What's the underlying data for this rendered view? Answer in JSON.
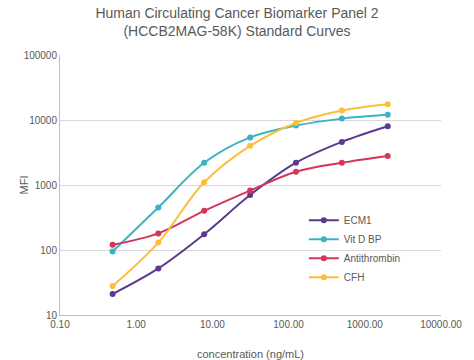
{
  "chart_data": {
    "type": "line",
    "title": "Human Circulating Cancer Biomarker Panel 2\n(HCCB2MAG-58K) Standard Curves",
    "x_label": "concentration (ng/mL)",
    "y_label": "MFI",
    "log": true,
    "grid": "y",
    "legend": "lower right",
    "marker": "circle",
    "line_style": "smooth",
    "x": [
      0.49,
      1.95,
      7.8,
      31.25,
      125,
      500,
      2000
    ],
    "series": [
      {
        "name": "ECM1",
        "color": "#5b3a8e",
        "values": [
          21,
          52,
          175,
          700,
          2200,
          4600,
          8000
        ]
      },
      {
        "name": "Vit D BP",
        "color": "#3bb3c3",
        "values": [
          95,
          450,
          2200,
          5400,
          8200,
          10500,
          12000
        ]
      },
      {
        "name": "Antithrombin",
        "color": "#d4365a",
        "values": [
          120,
          180,
          400,
          820,
          1600,
          2200,
          2800
        ]
      },
      {
        "name": "CFH",
        "color": "#fbbf3c",
        "values": [
          28,
          130,
          1100,
          4000,
          9000,
          14000,
          17500
        ]
      }
    ],
    "xlim": [
      0.1,
      10000
    ],
    "xticks": [
      {
        "value": 0.1,
        "label": "0.10"
      },
      {
        "value": 1,
        "label": "1.00"
      },
      {
        "value": 10,
        "label": "10.00"
      },
      {
        "value": 100,
        "label": "100.00"
      },
      {
        "value": 1000,
        "label": "1000.00"
      },
      {
        "value": 10000,
        "label": "10000.00"
      }
    ],
    "ylim": [
      10,
      100000
    ],
    "yticks": [
      10,
      100,
      1000,
      10000,
      100000
    ]
  }
}
